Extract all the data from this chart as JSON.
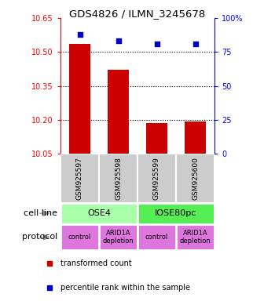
{
  "title": "GDS4826 / ILMN_3245678",
  "samples": [
    "GSM925597",
    "GSM925598",
    "GSM925599",
    "GSM925600"
  ],
  "bar_values": [
    10.535,
    10.42,
    10.185,
    10.192
  ],
  "bar_bottom": 10.05,
  "blue_values": [
    88,
    83,
    81,
    81
  ],
  "left_ylim": [
    10.05,
    10.65
  ],
  "right_ylim": [
    0,
    100
  ],
  "left_yticks": [
    10.05,
    10.2,
    10.35,
    10.5,
    10.65
  ],
  "right_yticks": [
    0,
    25,
    50,
    75,
    100
  ],
  "right_yticklabels": [
    "0",
    "25",
    "50",
    "75",
    "100%"
  ],
  "cell_line_labels": [
    "OSE4",
    "IOSE80pc"
  ],
  "cell_line_spans": [
    [
      0,
      2
    ],
    [
      2,
      4
    ]
  ],
  "cell_line_colors": [
    "#aaffaa",
    "#55ee55"
  ],
  "protocol_labels": [
    "control",
    "ARID1A\ndepletion",
    "control",
    "ARID1A\ndepletion"
  ],
  "protocol_color": "#dd77dd",
  "bar_color": "#cc0000",
  "blue_color": "#0000cc",
  "sample_box_color": "#cccccc",
  "legend_red_label": "transformed count",
  "legend_blue_label": "percentile rank within the sample",
  "cell_line_label": "cell line",
  "protocol_label": "protocol",
  "arrow_color": "#999999",
  "bar_width": 0.55
}
